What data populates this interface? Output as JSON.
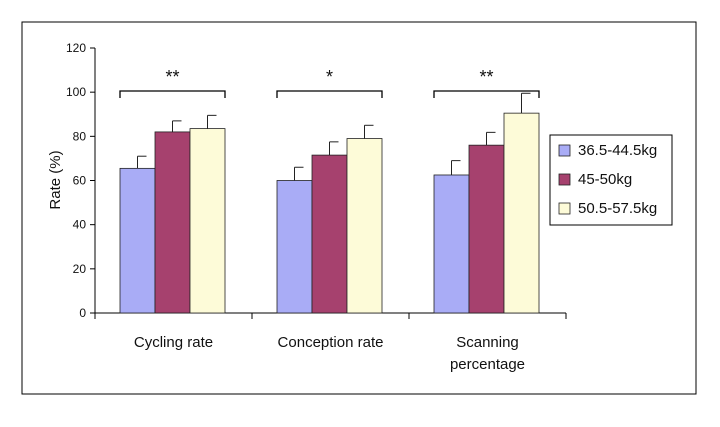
{
  "chart_data": {
    "type": "bar",
    "title": "",
    "xlabel": "",
    "ylabel": "Rate (%)",
    "ylim": [
      0,
      120
    ],
    "yticks": [
      "0",
      "20",
      "40",
      "60",
      "80",
      "100",
      "120"
    ],
    "categories": [
      [
        "Cycling rate"
      ],
      [
        "Conception rate"
      ],
      [
        "Scanning",
        "percentage"
      ]
    ],
    "series": [
      {
        "name": "36.5-44.5kg",
        "color": "#a9acf6",
        "values": [
          65.5,
          60,
          62.5
        ],
        "errors": [
          5.5,
          6,
          6.5
        ]
      },
      {
        "name": "45-50kg",
        "color": "#a6416e",
        "values": [
          82,
          71.5,
          76
        ],
        "errors": [
          5,
          6,
          5.8
        ]
      },
      {
        "name": "50.5-57.5kg",
        "color": "#fdfbd8",
        "values": [
          83.5,
          79,
          90.5
        ],
        "errors": [
          6,
          6,
          9
        ]
      }
    ],
    "significance": [
      "**",
      "*",
      "**"
    ],
    "legend": "right",
    "grid": false
  }
}
